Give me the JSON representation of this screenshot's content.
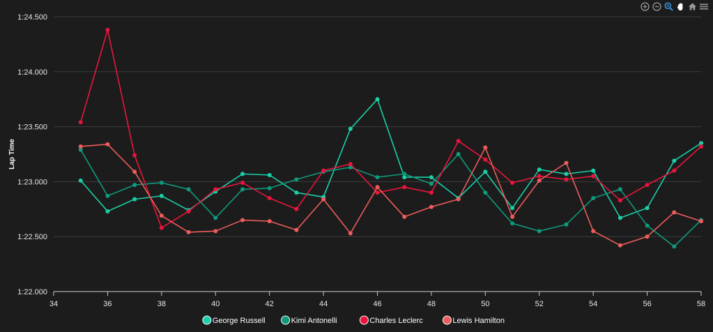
{
  "toolbar": {
    "icons": [
      "zoom-in-icon",
      "zoom-out-icon",
      "selection-zoom-icon",
      "pan-icon",
      "home-icon",
      "menu-icon"
    ],
    "active_color": "#3a8fd8",
    "icon_color": "#9a9a9a"
  },
  "chart_data": {
    "type": "line",
    "ylabel": "Lap Time",
    "xlabel": "",
    "xlim": [
      34,
      58
    ],
    "ylim": [
      82.0,
      84.5
    ],
    "x_ticks": [
      "34",
      "36",
      "38",
      "40",
      "42",
      "44",
      "46",
      "48",
      "50",
      "52",
      "54",
      "56",
      "58"
    ],
    "y_ticks": [
      "1:22.000",
      "1:22.500",
      "1:23.000",
      "1:23.500",
      "1:24.000",
      "1:24.500"
    ],
    "x": [
      35,
      36,
      37,
      38,
      39,
      40,
      41,
      42,
      43,
      44,
      45,
      46,
      47,
      48,
      49,
      50,
      51,
      52,
      53,
      54,
      55,
      56,
      57,
      58
    ],
    "legend_position": "bottom-center",
    "grid": true,
    "series": [
      {
        "name": "George Russell",
        "color": "#1ad0a8",
        "values": [
          83.01,
          82.73,
          82.84,
          82.87,
          82.74,
          82.91,
          83.07,
          83.06,
          82.9,
          82.86,
          83.48,
          83.75,
          83.04,
          83.04,
          82.85,
          83.09,
          82.76,
          83.11,
          83.07,
          83.1,
          82.67,
          82.76,
          83.19,
          83.35
        ]
      },
      {
        "name": "Kimi Antonelli",
        "color": "#0f9a7c",
        "values": [
          83.29,
          82.87,
          82.97,
          82.99,
          82.93,
          82.67,
          82.93,
          82.94,
          83.02,
          83.09,
          83.13,
          83.04,
          83.07,
          82.98,
          83.25,
          82.9,
          82.62,
          82.55,
          82.61,
          82.85,
          82.93,
          82.6,
          82.41,
          82.65
        ]
      },
      {
        "name": "Charles Leclerc",
        "color": "#e8163c",
        "values": [
          83.54,
          84.38,
          83.24,
          82.58,
          82.73,
          82.93,
          82.99,
          82.85,
          82.75,
          83.1,
          83.16,
          82.9,
          82.95,
          82.9,
          83.37,
          83.2,
          82.99,
          83.05,
          83.02,
          83.05,
          82.83,
          82.97,
          83.1,
          83.32
        ]
      },
      {
        "name": "Lewis Hamilton",
        "color": "#ee5c5c",
        "values": [
          83.32,
          83.34,
          83.09,
          82.69,
          82.54,
          82.55,
          82.65,
          82.64,
          82.56,
          82.84,
          82.53,
          82.95,
          82.68,
          82.77,
          82.84,
          83.31,
          82.68,
          83.01,
          83.17,
          82.55,
          82.42,
          82.5,
          82.72,
          82.64
        ]
      }
    ]
  }
}
